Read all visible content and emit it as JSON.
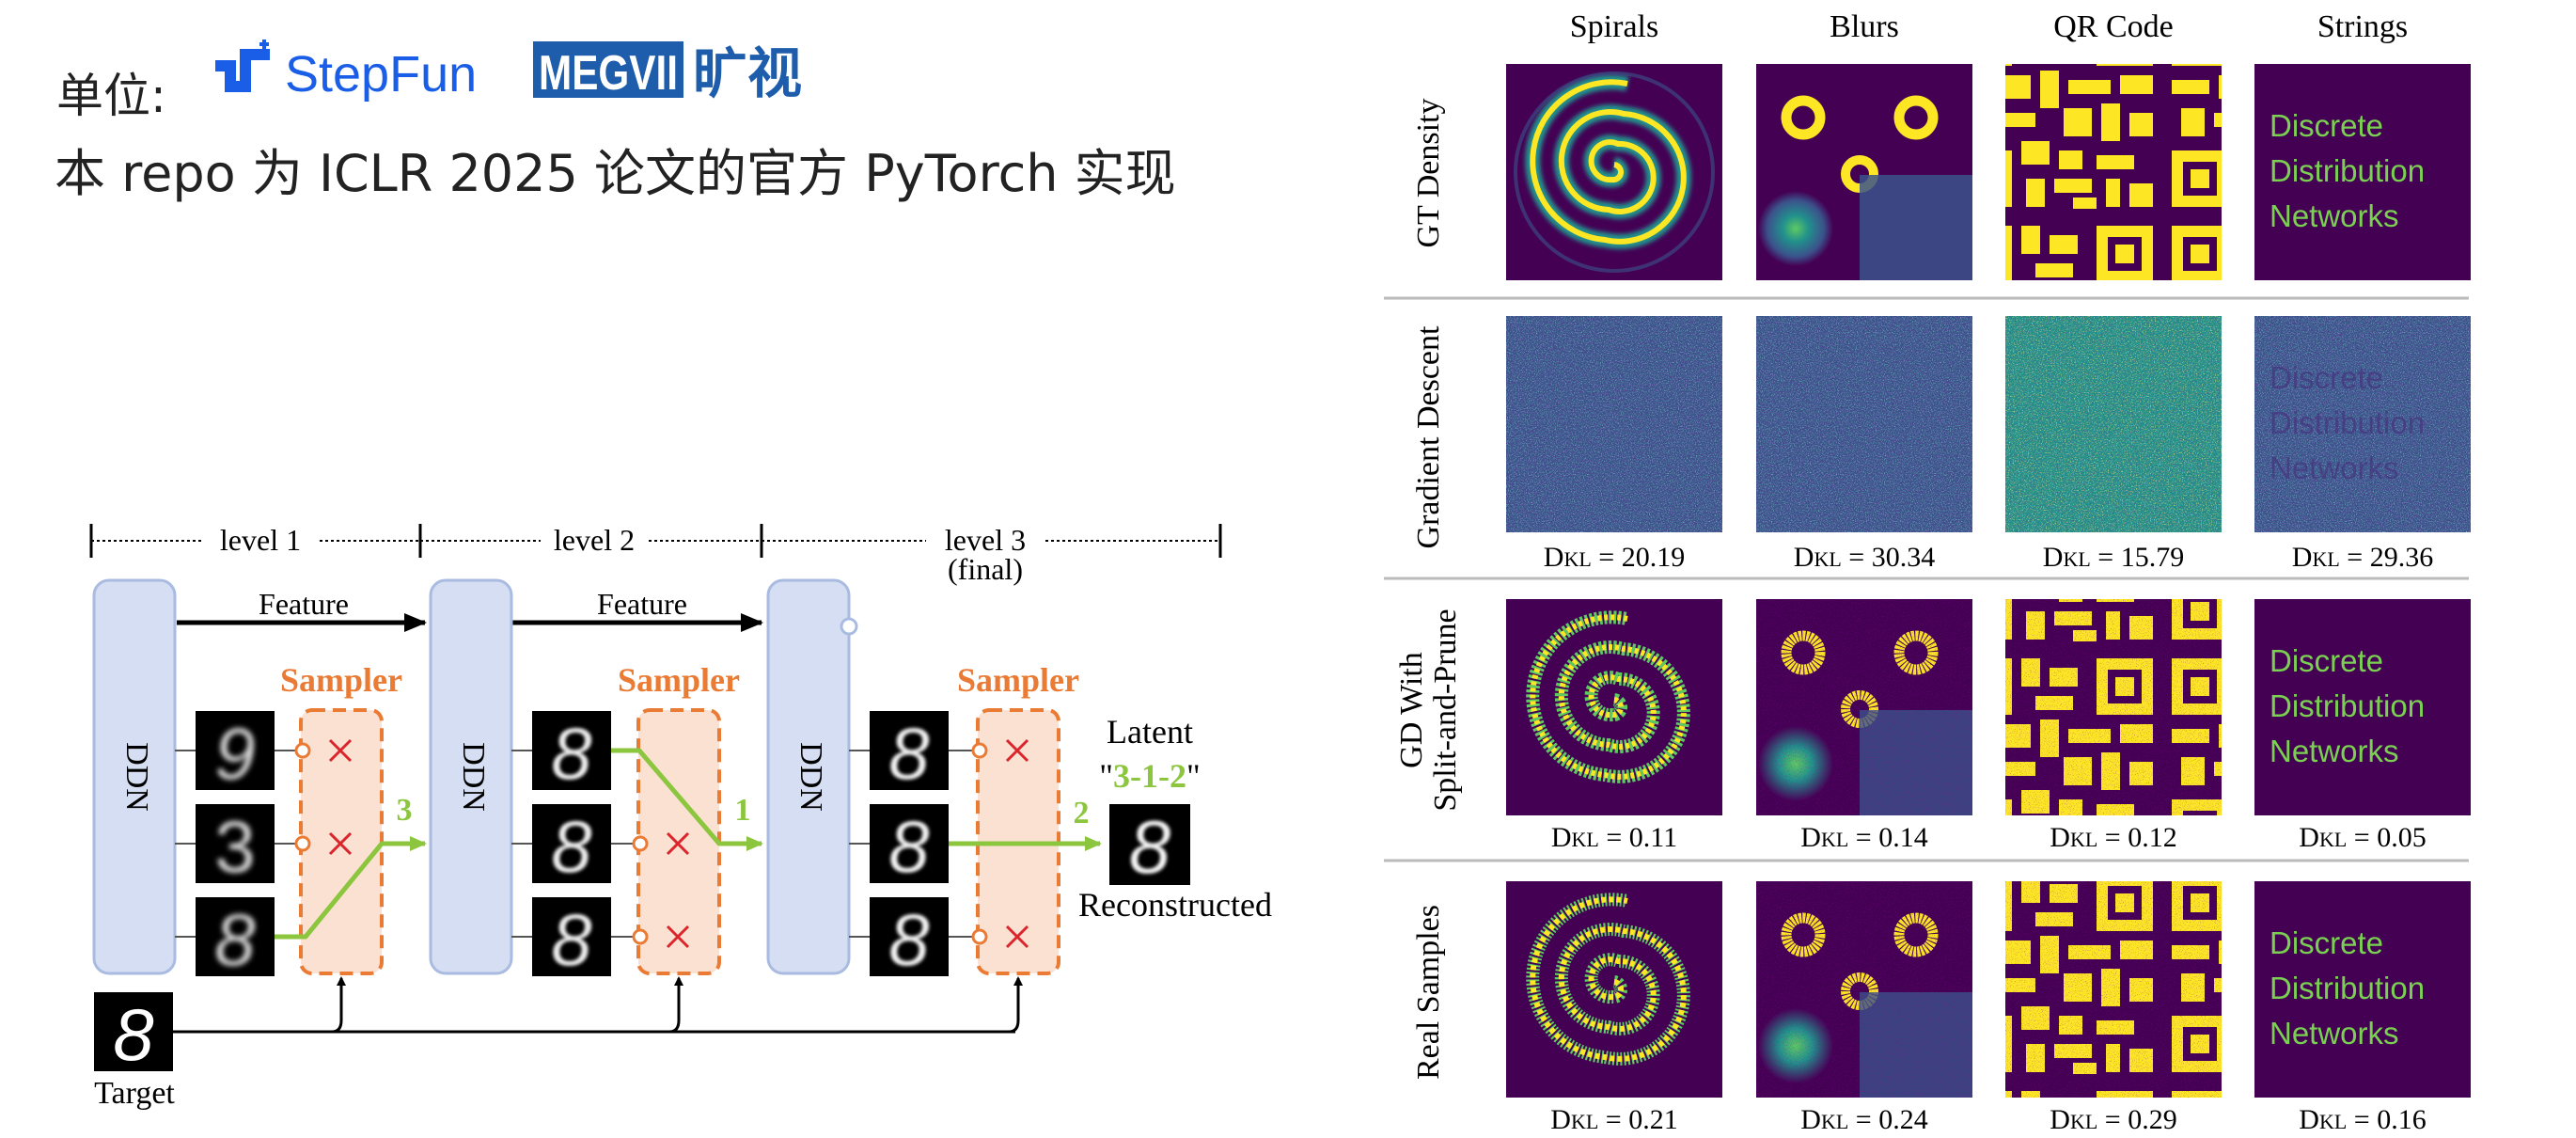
{
  "header": {
    "unit_label": "单位:",
    "stepfun_logo_text": "StepFun",
    "megvii_logo_text": "MEGVII",
    "megvii_cn_text": "旷视",
    "description": "本 repo 为 ICLR 2025 论文的官方 PyTorch 实现"
  },
  "diagram": {
    "levels": [
      {
        "label": "level 1",
        "sub": ""
      },
      {
        "label": "level 2",
        "sub": ""
      },
      {
        "label": "level 3",
        "sub": "(final)"
      }
    ],
    "feature_label": "Feature",
    "ddn_label": "DDN",
    "sampler_label": "Sampler",
    "selected_indices": [
      "3",
      "1",
      "2"
    ],
    "latent_label": "Latent",
    "latent_quote_open": "\"",
    "latent_value": "3-1-2",
    "latent_quote_close": "\"",
    "reconstructed_label": "Reconstructed",
    "target_label": "Target",
    "colors": {
      "ddn_fill": "#d5def2",
      "ddn_stroke": "#a9bbe0",
      "sampler_fill": "#fbe1d2",
      "sampler_stroke": "#e97b35",
      "green": "#8cc63e",
      "red": "#d9252b"
    }
  },
  "grid": {
    "columns": [
      "Spirals",
      "Blurs",
      "QR Code",
      "Strings"
    ],
    "rows": [
      {
        "label_lines": [
          "GT Density"
        ],
        "kl": [
          "",
          "",
          "",
          ""
        ]
      },
      {
        "label_lines": [
          "Gradient Descent"
        ],
        "kl": [
          "20.19",
          "30.34",
          "15.79",
          "29.36"
        ]
      },
      {
        "label_lines": [
          "GD With",
          "Split-and-Prune"
        ],
        "kl": [
          "0.11",
          "0.14",
          "0.12",
          "0.05"
        ]
      },
      {
        "label_lines": [
          "Real Samples"
        ],
        "kl": [
          "0.21",
          "0.24",
          "0.29",
          "0.16"
        ]
      }
    ],
    "kl_prefix_main": "D",
    "kl_prefix_sub": "KL",
    "kl_equals": " = ",
    "strings_text": [
      "Discrete",
      "Distribution",
      "Networks"
    ],
    "colors": {
      "bg": "#440154",
      "yellow": "#fde725",
      "green": "#5ec962",
      "teal": "#21918c",
      "text": "#7ad151"
    }
  }
}
